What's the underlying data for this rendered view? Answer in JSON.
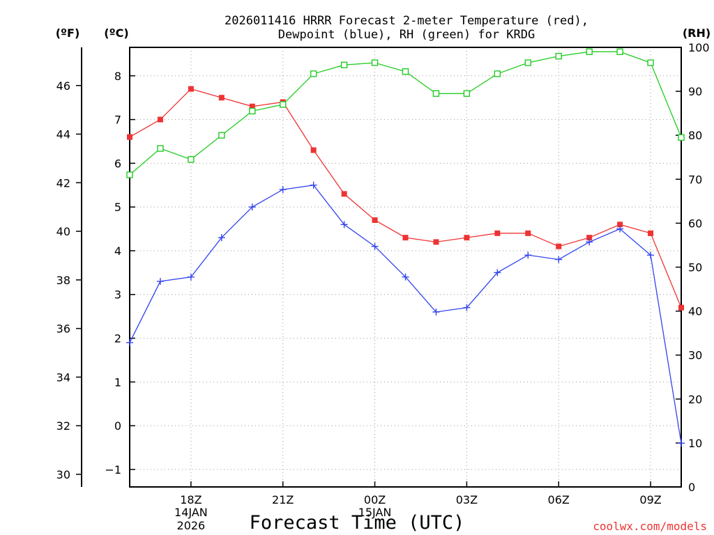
{
  "chart_data": {
    "type": "line",
    "title_lines": [
      "2026011416 HRRR Forecast 2-meter Temperature (red),",
      "Dewpoint (blue), RH (green) for KRDG"
    ],
    "xlabel": "Forecast Time (UTC)",
    "credit": "coolwx.com/models",
    "units": {
      "fahrenheit": "(ºF)",
      "celsius": "(ºC)",
      "rh": "(RH)"
    },
    "forecast_hours": [
      16,
      17,
      18,
      19,
      20,
      21,
      22,
      23,
      24,
      25,
      26,
      27,
      28,
      29,
      30,
      31,
      32,
      33,
      34
    ],
    "x_ticks": [
      {
        "hour": 18,
        "label": "18Z",
        "date_lines": [
          "14JAN",
          "2026"
        ]
      },
      {
        "hour": 21,
        "label": "21Z",
        "date_lines": []
      },
      {
        "hour": 24,
        "label": "00Z",
        "date_lines": [
          "15JAN"
        ]
      },
      {
        "hour": 27,
        "label": "03Z",
        "date_lines": []
      },
      {
        "hour": 30,
        "label": "06Z",
        "date_lines": []
      },
      {
        "hour": 33,
        "label": "09Z",
        "date_lines": []
      }
    ],
    "xlim": [
      16,
      34
    ],
    "celsius_axis": {
      "range": [
        -1.4,
        8.65
      ],
      "ticks": [
        -1,
        0,
        1,
        2,
        3,
        4,
        5,
        6,
        7,
        8
      ],
      "tick_labels": [
        "−1",
        "0",
        "1",
        "2",
        "3",
        "4",
        "5",
        "6",
        "7",
        "8"
      ]
    },
    "fahrenheit_axis": {
      "ticks": [
        30,
        32,
        34,
        36,
        38,
        40,
        42,
        44,
        46
      ],
      "tick_labels": [
        "30",
        "32",
        "34",
        "36",
        "38",
        "40",
        "42",
        "44",
        "46"
      ]
    },
    "rh_axis": {
      "range": [
        0,
        100
      ],
      "ticks": [
        0,
        10,
        20,
        30,
        40,
        50,
        60,
        70,
        80,
        90,
        100
      ],
      "tick_labels": [
        "0",
        "10",
        "20",
        "30",
        "40",
        "50",
        "60",
        "70",
        "80",
        "90",
        "100"
      ]
    },
    "grid": true,
    "series": [
      {
        "name": "Temperature",
        "units": "C",
        "color": "#ee3333",
        "marker": "filled-square",
        "values": [
          6.6,
          7.0,
          7.7,
          7.5,
          7.3,
          7.4,
          6.3,
          5.3,
          4.7,
          4.3,
          4.2,
          4.3,
          4.4,
          4.4,
          4.1,
          4.3,
          4.6,
          4.4,
          2.7
        ]
      },
      {
        "name": "Dewpoint",
        "units": "C",
        "color": "#3344ee",
        "marker": "plus",
        "values": [
          1.9,
          3.3,
          3.4,
          4.3,
          5.0,
          5.4,
          5.5,
          4.6,
          4.1,
          3.4,
          2.6,
          2.7,
          3.5,
          3.9,
          3.8,
          4.2,
          4.5,
          3.9,
          -0.4
        ]
      },
      {
        "name": "Relative Humidity",
        "units": "%",
        "color": "#22cc22",
        "marker": "open-square",
        "values": [
          71,
          77,
          74.5,
          80,
          85.5,
          87,
          94,
          96,
          96.5,
          94.5,
          89.5,
          89.5,
          94,
          96.5,
          98,
          99,
          99,
          96.5,
          79.5
        ]
      }
    ]
  }
}
